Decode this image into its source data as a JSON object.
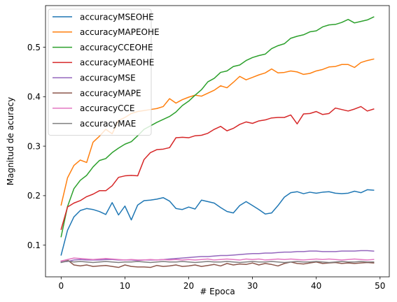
{
  "chart_data": {
    "type": "line",
    "title": "",
    "xlabel": "# Epoca",
    "ylabel": "Magnitud de acuracy",
    "xlim": [
      -2.45,
      51.45
    ],
    "ylim": [
      0.036,
      0.584
    ],
    "xticks": [
      0,
      10,
      20,
      30,
      40,
      50
    ],
    "yticks": [
      0.1,
      0.2,
      0.3,
      0.4,
      0.5
    ],
    "grid": false,
    "legend": "top-left",
    "x": [
      0,
      1,
      2,
      3,
      4,
      5,
      6,
      7,
      8,
      9,
      10,
      11,
      12,
      13,
      14,
      15,
      16,
      17,
      18,
      19,
      20,
      21,
      22,
      23,
      24,
      25,
      26,
      27,
      28,
      29,
      30,
      31,
      32,
      33,
      34,
      35,
      36,
      37,
      38,
      39,
      40,
      41,
      42,
      43,
      44,
      45,
      46,
      47,
      48,
      49
    ],
    "series": [
      {
        "name": "accuracyMSEOHE",
        "color": "#1f77b4",
        "values": [
          0.08,
          0.13,
          0.157,
          0.17,
          0.174,
          0.172,
          0.168,
          0.162,
          0.186,
          0.161,
          0.179,
          0.151,
          0.181,
          0.19,
          0.191,
          0.193,
          0.196,
          0.189,
          0.174,
          0.172,
          0.177,
          0.173,
          0.191,
          0.188,
          0.185,
          0.176,
          0.168,
          0.165,
          0.18,
          0.188,
          0.18,
          0.172,
          0.163,
          0.165,
          0.18,
          0.197,
          0.206,
          0.208,
          0.204,
          0.207,
          0.205,
          0.207,
          0.208,
          0.205,
          0.204,
          0.205,
          0.209,
          0.206,
          0.212,
          0.211
        ]
      },
      {
        "name": "accuracyMAPEOHE",
        "color": "#ff7f0e",
        "values": [
          0.181,
          0.236,
          0.261,
          0.272,
          0.267,
          0.308,
          0.32,
          0.334,
          0.325,
          0.352,
          0.358,
          0.366,
          0.37,
          0.372,
          0.374,
          0.376,
          0.38,
          0.396,
          0.387,
          0.394,
          0.399,
          0.403,
          0.401,
          0.407,
          0.413,
          0.422,
          0.418,
          0.429,
          0.441,
          0.434,
          0.439,
          0.444,
          0.448,
          0.456,
          0.448,
          0.449,
          0.452,
          0.45,
          0.445,
          0.447,
          0.452,
          0.455,
          0.46,
          0.461,
          0.465,
          0.465,
          0.459,
          0.469,
          0.473,
          0.476
        ]
      },
      {
        "name": "accuracyCCEOHE",
        "color": "#2ca02c",
        "values": [
          0.117,
          0.178,
          0.214,
          0.231,
          0.241,
          0.258,
          0.271,
          0.275,
          0.287,
          0.296,
          0.304,
          0.309,
          0.321,
          0.334,
          0.341,
          0.348,
          0.354,
          0.36,
          0.369,
          0.382,
          0.391,
          0.403,
          0.414,
          0.43,
          0.437,
          0.449,
          0.452,
          0.461,
          0.464,
          0.473,
          0.479,
          0.483,
          0.486,
          0.497,
          0.503,
          0.507,
          0.518,
          0.522,
          0.525,
          0.531,
          0.533,
          0.541,
          0.545,
          0.546,
          0.55,
          0.556,
          0.549,
          0.552,
          0.555,
          0.561
        ]
      },
      {
        "name": "accuracyMAEOHE",
        "color": "#d62728",
        "values": [
          0.132,
          0.177,
          0.185,
          0.19,
          0.198,
          0.203,
          0.21,
          0.21,
          0.22,
          0.237,
          0.24,
          0.241,
          0.24,
          0.273,
          0.287,
          0.293,
          0.294,
          0.297,
          0.317,
          0.318,
          0.317,
          0.321,
          0.322,
          0.326,
          0.334,
          0.34,
          0.331,
          0.336,
          0.344,
          0.349,
          0.346,
          0.351,
          0.353,
          0.357,
          0.358,
          0.358,
          0.363,
          0.345,
          0.365,
          0.366,
          0.37,
          0.364,
          0.366,
          0.377,
          0.374,
          0.371,
          0.375,
          0.38,
          0.371,
          0.375
        ]
      },
      {
        "name": "accuracyMSE",
        "color": "#9467bd",
        "values": [
          0.066,
          0.067,
          0.07,
          0.071,
          0.07,
          0.07,
          0.07,
          0.071,
          0.071,
          0.07,
          0.07,
          0.07,
          0.069,
          0.07,
          0.07,
          0.07,
          0.071,
          0.072,
          0.073,
          0.074,
          0.075,
          0.076,
          0.077,
          0.077,
          0.078,
          0.079,
          0.079,
          0.08,
          0.081,
          0.082,
          0.083,
          0.083,
          0.084,
          0.084,
          0.085,
          0.086,
          0.086,
          0.087,
          0.087,
          0.088,
          0.088,
          0.087,
          0.087,
          0.087,
          0.088,
          0.088,
          0.088,
          0.089,
          0.089,
          0.088
        ]
      },
      {
        "name": "accuracyMAPE",
        "color": "#8c564b",
        "values": [
          0.068,
          0.07,
          0.06,
          0.058,
          0.06,
          0.057,
          0.058,
          0.059,
          0.057,
          0.055,
          0.06,
          0.057,
          0.056,
          0.056,
          0.055,
          0.059,
          0.057,
          0.058,
          0.06,
          0.057,
          0.058,
          0.06,
          0.057,
          0.059,
          0.061,
          0.058,
          0.063,
          0.06,
          0.062,
          0.061,
          0.064,
          0.06,
          0.063,
          0.061,
          0.058,
          0.063,
          0.066,
          0.063,
          0.062,
          0.064,
          0.066,
          0.063,
          0.064,
          0.065,
          0.063,
          0.064,
          0.063,
          0.064,
          0.065,
          0.064
        ]
      },
      {
        "name": "accuracyCCE",
        "color": "#e377c2",
        "values": [
          0.068,
          0.071,
          0.074,
          0.073,
          0.072,
          0.071,
          0.072,
          0.073,
          0.072,
          0.071,
          0.07,
          0.071,
          0.07,
          0.07,
          0.071,
          0.07,
          0.071,
          0.07,
          0.071,
          0.07,
          0.071,
          0.07,
          0.071,
          0.072,
          0.07,
          0.071,
          0.072,
          0.071,
          0.07,
          0.072,
          0.071,
          0.072,
          0.07,
          0.071,
          0.072,
          0.071,
          0.072,
          0.071,
          0.07,
          0.071,
          0.072,
          0.071,
          0.072,
          0.071,
          0.07,
          0.071,
          0.072,
          0.071,
          0.07,
          0.071
        ]
      },
      {
        "name": "accuracyMAE",
        "color": "#7f7f7f",
        "values": [
          0.065,
          0.068,
          0.066,
          0.067,
          0.066,
          0.065,
          0.066,
          0.067,
          0.066,
          0.065,
          0.066,
          0.066,
          0.067,
          0.066,
          0.065,
          0.066,
          0.067,
          0.066,
          0.066,
          0.067,
          0.066,
          0.065,
          0.066,
          0.067,
          0.066,
          0.066,
          0.067,
          0.066,
          0.065,
          0.066,
          0.067,
          0.066,
          0.066,
          0.067,
          0.066,
          0.065,
          0.066,
          0.067,
          0.066,
          0.066,
          0.067,
          0.066,
          0.065,
          0.066,
          0.067,
          0.066,
          0.066,
          0.067,
          0.066,
          0.066
        ]
      }
    ]
  }
}
